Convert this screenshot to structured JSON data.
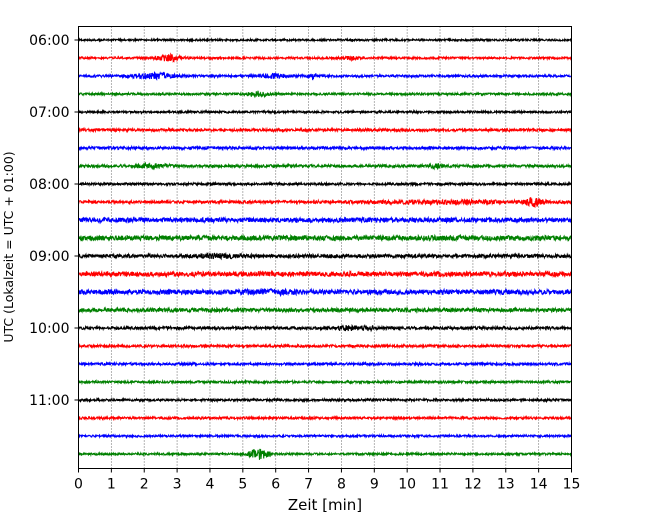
{
  "chart_data": {
    "type": "line",
    "title": "",
    "xlabel": "Zeit  [min]",
    "ylabel": "UTC (Lokalzeit = UTC + 01:00)",
    "xlim": [
      0,
      15
    ],
    "x_ticks": [
      0,
      1,
      2,
      3,
      4,
      5,
      6,
      7,
      8,
      9,
      10,
      11,
      12,
      13,
      14,
      15
    ],
    "y_tick_labels": [
      "06:00",
      "07:00",
      "08:00",
      "09:00",
      "10:00",
      "11:00"
    ],
    "grid": "vertical dotted lines at each minute",
    "trace_interval_minutes": 15,
    "trace_color_cycle": [
      "#000000",
      "#ff0000",
      "#0000ff",
      "#008000"
    ],
    "traces": [
      {
        "start": "06:00",
        "color": "#000000",
        "noise": 0.9,
        "events": []
      },
      {
        "start": "06:15",
        "color": "#ff0000",
        "noise": 1.0,
        "events": [
          [
            2.75,
            2.8,
            0.35
          ],
          [
            8.3,
            1.6,
            0.2
          ]
        ]
      },
      {
        "start": "06:30",
        "color": "#0000ff",
        "noise": 1.1,
        "events": [
          [
            2.25,
            2.6,
            0.6
          ],
          [
            5.95,
            2.0,
            0.35
          ],
          [
            7.15,
            3.4,
            0.08
          ]
        ]
      },
      {
        "start": "06:45",
        "color": "#008000",
        "noise": 1.0,
        "events": [
          [
            5.45,
            2.4,
            0.3
          ]
        ]
      },
      {
        "start": "07:00",
        "color": "#000000",
        "noise": 1.0,
        "events": []
      },
      {
        "start": "07:15",
        "color": "#ff0000",
        "noise": 1.3,
        "events": []
      },
      {
        "start": "07:30",
        "color": "#0000ff",
        "noise": 1.3,
        "events": []
      },
      {
        "start": "07:45",
        "color": "#008000",
        "noise": 1.3,
        "events": [
          [
            2.2,
            1.7,
            0.5
          ],
          [
            10.9,
            1.6,
            0.2
          ]
        ]
      },
      {
        "start": "08:00",
        "color": "#000000",
        "noise": 1.1,
        "events": []
      },
      {
        "start": "08:15",
        "color": "#ff0000",
        "noise": 1.3,
        "events": [
          [
            13.85,
            3.6,
            0.25
          ],
          [
            11.0,
            1.2,
            2.5
          ]
        ]
      },
      {
        "start": "08:30",
        "color": "#0000ff",
        "noise": 2.3,
        "events": []
      },
      {
        "start": "08:45",
        "color": "#008000",
        "noise": 2.4,
        "events": []
      },
      {
        "start": "09:00",
        "color": "#000000",
        "noise": 1.8,
        "events": [
          [
            4.3,
            1.4,
            0.6
          ]
        ]
      },
      {
        "start": "09:15",
        "color": "#ff0000",
        "noise": 2.3,
        "events": []
      },
      {
        "start": "09:30",
        "color": "#0000ff",
        "noise": 2.4,
        "events": [
          [
            5.9,
            1.3,
            0.6
          ]
        ]
      },
      {
        "start": "09:45",
        "color": "#008000",
        "noise": 1.9,
        "events": []
      },
      {
        "start": "10:00",
        "color": "#000000",
        "noise": 1.4,
        "events": [
          [
            8.2,
            1.9,
            0.35
          ],
          [
            8.8,
            1.6,
            0.2
          ]
        ]
      },
      {
        "start": "10:15",
        "color": "#ff0000",
        "noise": 1.2,
        "events": []
      },
      {
        "start": "10:30",
        "color": "#0000ff",
        "noise": 1.2,
        "events": []
      },
      {
        "start": "10:45",
        "color": "#008000",
        "noise": 1.1,
        "events": []
      },
      {
        "start": "11:00",
        "color": "#000000",
        "noise": 1.1,
        "events": []
      },
      {
        "start": "11:15",
        "color": "#ff0000",
        "noise": 1.1,
        "events": []
      },
      {
        "start": "11:30",
        "color": "#0000ff",
        "noise": 1.0,
        "events": []
      },
      {
        "start": "11:45",
        "color": "#008000",
        "noise": 1.0,
        "events": [
          [
            5.5,
            5.2,
            0.3
          ]
        ]
      }
    ]
  }
}
